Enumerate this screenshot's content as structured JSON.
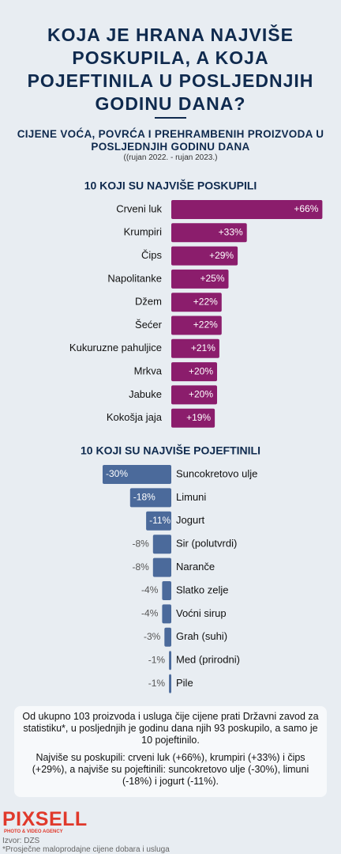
{
  "header": {
    "title": "KOJA JE HRANA NAJVIŠE POSKUPILA, A KOJA POJEFTINILA U POSLJEDNJIH GODINU DANA?",
    "subtitle": "CIJENE VOĆA, POVRĆA I PREHRAMBENIH PROIZVODA U POSLJEDNJIH GODINU DANA",
    "period": "((rujan 2022. - rujan 2023.)"
  },
  "chart_data": [
    {
      "type": "bar",
      "orientation": "horizontal",
      "title": "10 KOJI SU NAJVIŠE POSKUPILI",
      "color": "#8b1d6c",
      "categories": [
        "Crveni luk",
        "Krumpiri",
        "Čips",
        "Napolitanke",
        "Džem",
        "Šećer",
        "Kukuruzne pahuljice",
        "Mrkva",
        "Jabuke",
        "Kokošja jaja"
      ],
      "values": [
        66,
        33,
        29,
        25,
        22,
        22,
        21,
        20,
        20,
        19
      ],
      "value_labels": [
        "+66%",
        "+33%",
        "+29%",
        "+25%",
        "+22%",
        "+22%",
        "+21%",
        "+20%",
        "+20%",
        "+19%"
      ]
    },
    {
      "type": "bar",
      "orientation": "horizontal",
      "title": "10 KOJI SU NAJVIŠE POJEFTINILI",
      "color": "#4b6a9b",
      "categories": [
        "Suncokretovo ulje",
        "Limuni",
        "Jogurt",
        "Sir (polutvrdi)",
        "Naranče",
        "Slatko zelje",
        "Voćni sirup",
        "Grah (suhi)",
        "Med (prirodni)",
        "Pile"
      ],
      "values": [
        -30,
        -18,
        -11,
        -8,
        -8,
        -4,
        -4,
        -3,
        -1,
        -1
      ],
      "value_labels": [
        "-30%",
        "-18%",
        "-11%",
        "-8%",
        "-8%",
        "-4%",
        "-4%",
        "-3%",
        "-1%",
        "-1%"
      ]
    }
  ],
  "summary": [
    "Od ukupno 103 proizvoda i usluga čije cijene prati Državni zavod za statistiku*, u posljednjih je godinu dana njih 93 poskupilo, a samo je 10 pojeftinilo.",
    "Najviše su poskupili: crveni luk (+66%), krumpiri (+33%) i čips (+29%), a najviše su pojeftinili: suncokretovo ulje (-30%), limuni (-18%) i jogurt (-11%)."
  ],
  "footer": {
    "logo": "PIXSELL",
    "tagline": "PHOTO & VIDEO AGENCY",
    "source": "Izvor: DZS",
    "note": "*Prosječne maloprodajne cijene dobara i usluga"
  }
}
